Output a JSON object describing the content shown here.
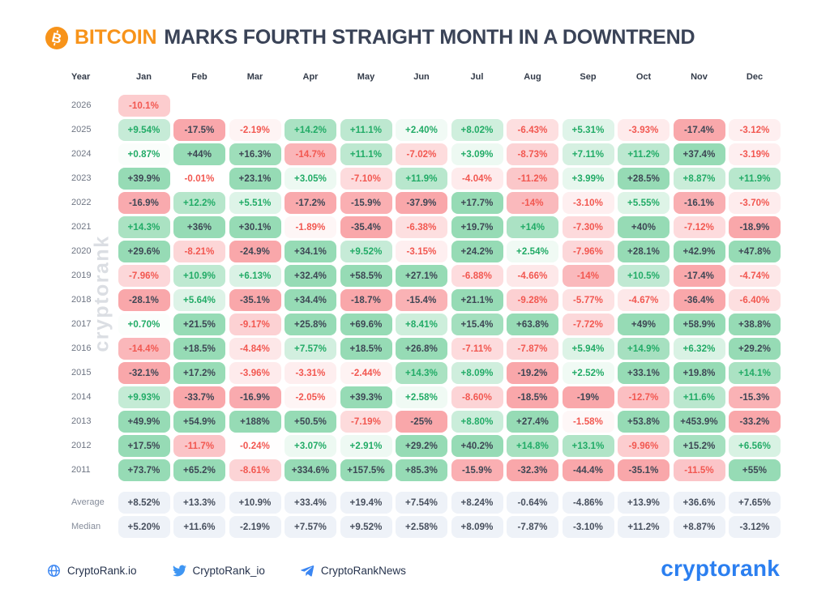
{
  "title": {
    "highlight": "BITCOIN",
    "rest": "MARKS FOURTH STRAIGHT MONTH IN A DOWNTREND"
  },
  "watermark": "cryptorank",
  "chart_data": {
    "type": "heatmap",
    "title": "BITCOIN MARKS FOURTH STRAIGHT MONTH IN A DOWNTREND",
    "row_header": "Year",
    "columns": [
      "Jan",
      "Feb",
      "Mar",
      "Apr",
      "May",
      "Jun",
      "Jul",
      "Aug",
      "Sep",
      "Oct",
      "Nov",
      "Dec"
    ],
    "rows": [
      {
        "year": "2026",
        "values": [
          "-10.1%",
          "",
          "",
          "",
          "",
          "",
          "",
          "",
          "",
          "",
          "",
          ""
        ]
      },
      {
        "year": "2025",
        "values": [
          "+9.54%",
          "-17.5%",
          "-2.19%",
          "+14.2%",
          "+11.1%",
          "+2.40%",
          "+8.02%",
          "-6.43%",
          "+5.31%",
          "-3.93%",
          "-17.4%",
          "-3.12%"
        ]
      },
      {
        "year": "2024",
        "values": [
          "+0.87%",
          "+44%",
          "+16.3%",
          "-14.7%",
          "+11.1%",
          "-7.02%",
          "+3.09%",
          "-8.73%",
          "+7.11%",
          "+11.2%",
          "+37.4%",
          "-3.19%"
        ]
      },
      {
        "year": "2023",
        "values": [
          "+39.9%",
          "-0.01%",
          "+23.1%",
          "+3.05%",
          "-7.10%",
          "+11.9%",
          "-4.04%",
          "-11.2%",
          "+3.99%",
          "+28.5%",
          "+8.87%",
          "+11.9%"
        ]
      },
      {
        "year": "2022",
        "values": [
          "-16.9%",
          "+12.2%",
          "+5.51%",
          "-17.2%",
          "-15.9%",
          "-37.9%",
          "+17.7%",
          "-14%",
          "-3.10%",
          "+5.55%",
          "-16.1%",
          "-3.70%"
        ]
      },
      {
        "year": "2021",
        "values": [
          "+14.3%",
          "+36%",
          "+30.1%",
          "-1.89%",
          "-35.4%",
          "-6.38%",
          "+19.7%",
          "+14%",
          "-7.30%",
          "+40%",
          "-7.12%",
          "-18.9%"
        ]
      },
      {
        "year": "2020",
        "values": [
          "+29.6%",
          "-8.21%",
          "-24.9%",
          "+34.1%",
          "+9.52%",
          "-3.15%",
          "+24.2%",
          "+2.54%",
          "-7.96%",
          "+28.1%",
          "+42.9%",
          "+47.8%"
        ]
      },
      {
        "year": "2019",
        "values": [
          "-7.96%",
          "+10.9%",
          "+6.13%",
          "+32.4%",
          "+58.5%",
          "+27.1%",
          "-6.88%",
          "-4.66%",
          "-14%",
          "+10.5%",
          "-17.4%",
          "-4.74%"
        ]
      },
      {
        "year": "2018",
        "values": [
          "-28.1%",
          "+5.64%",
          "-35.1%",
          "+34.4%",
          "-18.7%",
          "-15.4%",
          "+21.1%",
          "-9.28%",
          "-5.77%",
          "-4.67%",
          "-36.4%",
          "-6.40%"
        ]
      },
      {
        "year": "2017",
        "values": [
          "+0.70%",
          "+21.5%",
          "-9.17%",
          "+25.8%",
          "+69.6%",
          "+8.41%",
          "+15.4%",
          "+63.8%",
          "-7.72%",
          "+49%",
          "+58.9%",
          "+38.8%"
        ]
      },
      {
        "year": "2016",
        "values": [
          "-14.4%",
          "+18.5%",
          "-4.84%",
          "+7.57%",
          "+18.5%",
          "+26.8%",
          "-7.11%",
          "-7.87%",
          "+5.94%",
          "+14.9%",
          "+6.32%",
          "+29.2%"
        ]
      },
      {
        "year": "2015",
        "values": [
          "-32.1%",
          "+17.2%",
          "-3.96%",
          "-3.31%",
          "-2.44%",
          "+14.3%",
          "+8.09%",
          "-19.2%",
          "+2.52%",
          "+33.1%",
          "+19.8%",
          "+14.1%"
        ]
      },
      {
        "year": "2014",
        "values": [
          "+9.93%",
          "-33.7%",
          "-16.9%",
          "-2.05%",
          "+39.3%",
          "+2.58%",
          "-8.60%",
          "-18.5%",
          "-19%",
          "-12.7%",
          "+11.6%",
          "-15.3%"
        ]
      },
      {
        "year": "2013",
        "values": [
          "+49.9%",
          "+54.9%",
          "+188%",
          "+50.5%",
          "-7.19%",
          "-25%",
          "+8.80%",
          "+27.4%",
          "-1.58%",
          "+53.8%",
          "+453.9%",
          "-33.2%"
        ]
      },
      {
        "year": "2012",
        "values": [
          "+17.5%",
          "-11.7%",
          "-0.24%",
          "+3.07%",
          "+2.91%",
          "+29.2%",
          "+40.2%",
          "+14.8%",
          "+13.1%",
          "-9.96%",
          "+15.2%",
          "+6.56%"
        ]
      },
      {
        "year": "2011",
        "values": [
          "+73.7%",
          "+65.2%",
          "-8.61%",
          "+334.6%",
          "+157.5%",
          "+85.3%",
          "-15.9%",
          "-32.3%",
          "-44.4%",
          "-35.1%",
          "-11.5%",
          "+55%"
        ]
      }
    ],
    "summary": [
      {
        "label": "Average",
        "values": [
          "+8.52%",
          "+13.3%",
          "+10.9%",
          "+33.4%",
          "+19.4%",
          "+7.54%",
          "+8.24%",
          "-0.64%",
          "-4.86%",
          "+13.9%",
          "+36.6%",
          "+7.65%"
        ]
      },
      {
        "label": "Median",
        "values": [
          "+5.20%",
          "+11.6%",
          "-2.19%",
          "+7.57%",
          "+9.52%",
          "+2.58%",
          "+8.09%",
          "-7.87%",
          "-3.10%",
          "+11.2%",
          "+8.87%",
          "-3.12%"
        ]
      }
    ]
  },
  "footer": {
    "website": "CryptoRank.io",
    "twitter": "CryptoRank_io",
    "telegram": "CryptoRankNews",
    "logo": "cryptorank"
  },
  "colors": {
    "accent_orange": "#f7931a",
    "title_navy": "#3a4357",
    "brand_blue": "#2b7ff0",
    "positive_text": "#21ab66",
    "negative_text": "#f25750",
    "strong_cell_text": "#3d4654",
    "summary_bg": "#eef2f8"
  }
}
